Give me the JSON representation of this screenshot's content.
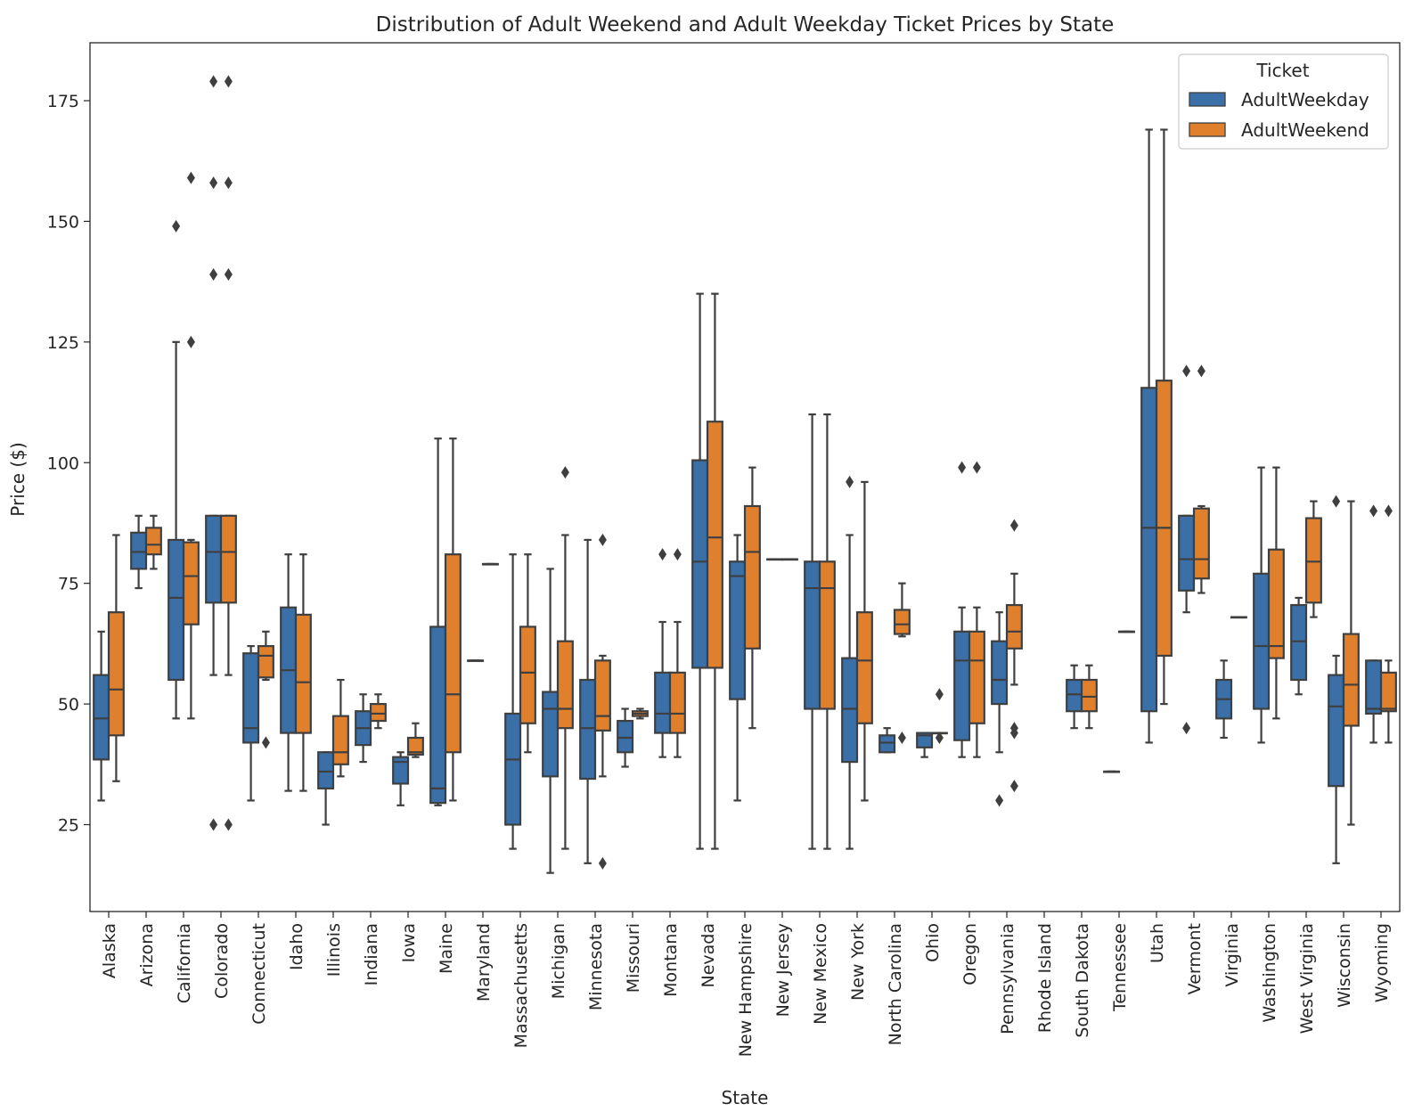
{
  "chart_data": {
    "type": "box",
    "title": "Distribution of Adult Weekend and Adult Weekday Ticket Prices by State",
    "xlabel": "State",
    "ylabel": "Price ($)",
    "ylim": [
      7,
      187
    ],
    "yticks": [
      25,
      50,
      75,
      100,
      125,
      150,
      175
    ],
    "legend": {
      "title": "Ticket",
      "position": "top-right"
    },
    "series": [
      {
        "name": "AdultWeekday",
        "color": "#3a6fa8"
      },
      {
        "name": "AdultWeekend",
        "color": "#e07f2c"
      }
    ],
    "categories": [
      {
        "state": "Alaska",
        "weekday": {
          "whislo": 30,
          "q1": 38.5,
          "med": 47,
          "q3": 56,
          "whishi": 65,
          "fliers": []
        },
        "weekend": {
          "whislo": 34,
          "q1": 43.5,
          "med": 53,
          "q3": 69,
          "whishi": 85,
          "fliers": []
        }
      },
      {
        "state": "Arizona",
        "weekday": {
          "whislo": 74,
          "q1": 78,
          "med": 81.5,
          "q3": 85.5,
          "whishi": 89,
          "fliers": []
        },
        "weekend": {
          "whislo": 78,
          "q1": 81,
          "med": 83,
          "q3": 86.5,
          "whishi": 89,
          "fliers": []
        }
      },
      {
        "state": "California",
        "weekday": {
          "whislo": 47,
          "q1": 55,
          "med": 72,
          "q3": 84,
          "whishi": 125,
          "fliers": [
            149
          ]
        },
        "weekend": {
          "whislo": 47,
          "q1": 66.5,
          "med": 76.5,
          "q3": 83.5,
          "whishi": 84,
          "fliers": [
            125,
            159
          ]
        }
      },
      {
        "state": "Colorado",
        "weekday": {
          "whislo": 56,
          "q1": 71,
          "med": 81.5,
          "q3": 89,
          "whishi": 89,
          "fliers": [
            25,
            139,
            158,
            179
          ]
        },
        "weekend": {
          "whislo": 56,
          "q1": 71,
          "med": 81.5,
          "q3": 89,
          "whishi": 89,
          "fliers": [
            25,
            139,
            158,
            179
          ]
        }
      },
      {
        "state": "Connecticut",
        "weekday": {
          "whislo": 30,
          "q1": 42,
          "med": 45,
          "q3": 60.5,
          "whishi": 62,
          "fliers": []
        },
        "weekend": {
          "whislo": 55,
          "q1": 55.5,
          "med": 60,
          "q3": 62,
          "whishi": 65,
          "fliers": [
            42
          ]
        }
      },
      {
        "state": "Idaho",
        "weekday": {
          "whislo": 32,
          "q1": 44,
          "med": 57,
          "q3": 70,
          "whishi": 81,
          "fliers": []
        },
        "weekend": {
          "whislo": 32,
          "q1": 44,
          "med": 54.5,
          "q3": 68.5,
          "whishi": 81,
          "fliers": []
        }
      },
      {
        "state": "Illinois",
        "weekday": {
          "whislo": 25,
          "q1": 32.5,
          "med": 36,
          "q3": 40,
          "whishi": 40,
          "fliers": []
        },
        "weekend": {
          "whislo": 35,
          "q1": 37.5,
          "med": 40,
          "q3": 47.5,
          "whishi": 55,
          "fliers": []
        }
      },
      {
        "state": "Indiana",
        "weekday": {
          "whislo": 38,
          "q1": 41.5,
          "med": 45,
          "q3": 48.5,
          "whishi": 52,
          "fliers": []
        },
        "weekend": {
          "whislo": 45,
          "q1": 46.5,
          "med": 48,
          "q3": 50,
          "whishi": 52,
          "fliers": []
        }
      },
      {
        "state": "Iowa",
        "weekday": {
          "whislo": 29,
          "q1": 33.5,
          "med": 38,
          "q3": 39,
          "whishi": 40,
          "fliers": []
        },
        "weekend": {
          "whislo": 39,
          "q1": 39.5,
          "med": 40,
          "q3": 43,
          "whishi": 46,
          "fliers": []
        }
      },
      {
        "state": "Maine",
        "weekday": {
          "whislo": 29,
          "q1": 29.5,
          "med": 32.5,
          "q3": 66,
          "whishi": 105,
          "fliers": []
        },
        "weekend": {
          "whislo": 30,
          "q1": 40,
          "med": 52,
          "q3": 81,
          "whishi": 105,
          "fliers": []
        }
      },
      {
        "state": "Maryland",
        "weekday": {
          "whislo": 59,
          "q1": 59,
          "med": 59,
          "q3": 59,
          "whishi": 59,
          "fliers": []
        },
        "weekend": {
          "whislo": 79,
          "q1": 79,
          "med": 79,
          "q3": 79,
          "whishi": 79,
          "fliers": []
        }
      },
      {
        "state": "Massachusetts",
        "weekday": {
          "whislo": 20,
          "q1": 25,
          "med": 38.5,
          "q3": 48,
          "whishi": 81,
          "fliers": []
        },
        "weekend": {
          "whislo": 40,
          "q1": 46,
          "med": 56.5,
          "q3": 66,
          "whishi": 81,
          "fliers": []
        }
      },
      {
        "state": "Michigan",
        "weekday": {
          "whislo": 15,
          "q1": 35,
          "med": 49,
          "q3": 52.5,
          "whishi": 78,
          "fliers": []
        },
        "weekend": {
          "whislo": 20,
          "q1": 45,
          "med": 49,
          "q3": 63,
          "whishi": 85,
          "fliers": [
            98
          ]
        }
      },
      {
        "state": "Minnesota",
        "weekday": {
          "whislo": 17,
          "q1": 34.5,
          "med": 45,
          "q3": 55,
          "whishi": 84,
          "fliers": []
        },
        "weekend": {
          "whislo": 35,
          "q1": 44.5,
          "med": 47.5,
          "q3": 59,
          "whishi": 60,
          "fliers": [
            17,
            84
          ]
        }
      },
      {
        "state": "Missouri",
        "weekday": {
          "whislo": 37,
          "q1": 40,
          "med": 43,
          "q3": 46.5,
          "whishi": 49,
          "fliers": []
        },
        "weekend": {
          "whislo": 47,
          "q1": 47.5,
          "med": 48,
          "q3": 48.5,
          "whishi": 49,
          "fliers": []
        }
      },
      {
        "state": "Montana",
        "weekday": {
          "whislo": 39,
          "q1": 44,
          "med": 48,
          "q3": 56.5,
          "whishi": 67,
          "fliers": [
            81
          ]
        },
        "weekend": {
          "whislo": 39,
          "q1": 44,
          "med": 48,
          "q3": 56.5,
          "whishi": 67,
          "fliers": [
            81
          ]
        }
      },
      {
        "state": "Nevada",
        "weekday": {
          "whislo": 20,
          "q1": 57.5,
          "med": 79.5,
          "q3": 100.5,
          "whishi": 135,
          "fliers": []
        },
        "weekend": {
          "whislo": 20,
          "q1": 57.5,
          "med": 84.5,
          "q3": 108.5,
          "whishi": 135,
          "fliers": []
        }
      },
      {
        "state": "New Hampshire",
        "weekday": {
          "whislo": 30,
          "q1": 51,
          "med": 76.5,
          "q3": 79.5,
          "whishi": 85,
          "fliers": []
        },
        "weekend": {
          "whislo": 45,
          "q1": 61.5,
          "med": 81.5,
          "q3": 91,
          "whishi": 99,
          "fliers": []
        }
      },
      {
        "state": "New Jersey",
        "weekday": {
          "whislo": 80,
          "q1": 80,
          "med": 80,
          "q3": 80,
          "whishi": 80,
          "fliers": []
        },
        "weekend": {
          "whislo": 80,
          "q1": 80,
          "med": 80,
          "q3": 80,
          "whishi": 80,
          "fliers": []
        }
      },
      {
        "state": "New Mexico",
        "weekday": {
          "whislo": 20,
          "q1": 49,
          "med": 74,
          "q3": 79.5,
          "whishi": 110,
          "fliers": []
        },
        "weekend": {
          "whislo": 20,
          "q1": 49,
          "med": 74,
          "q3": 79.5,
          "whishi": 110,
          "fliers": []
        }
      },
      {
        "state": "New York",
        "weekday": {
          "whislo": 20,
          "q1": 38,
          "med": 49,
          "q3": 59.5,
          "whishi": 85,
          "fliers": [
            96
          ]
        },
        "weekend": {
          "whislo": 30,
          "q1": 46,
          "med": 59,
          "q3": 69,
          "whishi": 96,
          "fliers": []
        }
      },
      {
        "state": "North Carolina",
        "weekday": {
          "whislo": 40,
          "q1": 40,
          "med": 42,
          "q3": 43.5,
          "whishi": 45,
          "fliers": []
        },
        "weekend": {
          "whislo": 64,
          "q1": 64.5,
          "med": 66.5,
          "q3": 69.5,
          "whishi": 75,
          "fliers": [
            43
          ]
        }
      },
      {
        "state": "Ohio",
        "weekday": {
          "whislo": 39,
          "q1": 41,
          "med": 43.5,
          "q3": 44,
          "whishi": 44,
          "fliers": []
        },
        "weekend": {
          "whislo": 44,
          "q1": 44,
          "med": 44,
          "q3": 44,
          "whishi": 44,
          "fliers": [
            43,
            52
          ]
        }
      },
      {
        "state": "Oregon",
        "weekday": {
          "whislo": 39,
          "q1": 42.5,
          "med": 59,
          "q3": 65,
          "whishi": 70,
          "fliers": [
            99
          ]
        },
        "weekend": {
          "whislo": 39,
          "q1": 46,
          "med": 59,
          "q3": 65,
          "whishi": 70,
          "fliers": [
            99
          ]
        }
      },
      {
        "state": "Pennsylvania",
        "weekday": {
          "whislo": 40,
          "q1": 50,
          "med": 55,
          "q3": 63,
          "whishi": 69,
          "fliers": [
            30
          ]
        },
        "weekend": {
          "whislo": 54,
          "q1": 61.5,
          "med": 65,
          "q3": 70.5,
          "whishi": 77,
          "fliers": [
            33,
            44,
            45,
            87
          ]
        }
      },
      {
        "state": "Rhode Island",
        "weekday": null,
        "weekend": null
      },
      {
        "state": "South Dakota",
        "weekday": {
          "whislo": 45,
          "q1": 48.5,
          "med": 52,
          "q3": 55,
          "whishi": 58,
          "fliers": []
        },
        "weekend": {
          "whislo": 45,
          "q1": 48.5,
          "med": 51.5,
          "q3": 55,
          "whishi": 58,
          "fliers": []
        }
      },
      {
        "state": "Tennessee",
        "weekday": {
          "whislo": 36,
          "q1": 36,
          "med": 36,
          "q3": 36,
          "whishi": 36,
          "fliers": []
        },
        "weekend": {
          "whislo": 65,
          "q1": 65,
          "med": 65,
          "q3": 65,
          "whishi": 65,
          "fliers": []
        }
      },
      {
        "state": "Utah",
        "weekday": {
          "whislo": 42,
          "q1": 48.5,
          "med": 86.5,
          "q3": 115.5,
          "whishi": 169,
          "fliers": []
        },
        "weekend": {
          "whislo": 50,
          "q1": 60,
          "med": 86.5,
          "q3": 117,
          "whishi": 169,
          "fliers": []
        }
      },
      {
        "state": "Vermont",
        "weekday": {
          "whislo": 69,
          "q1": 73.5,
          "med": 80,
          "q3": 89,
          "whishi": 89,
          "fliers": [
            45,
            119
          ]
        },
        "weekend": {
          "whislo": 73,
          "q1": 76,
          "med": 80,
          "q3": 90.5,
          "whishi": 91,
          "fliers": [
            119
          ]
        }
      },
      {
        "state": "Virginia",
        "weekday": {
          "whislo": 43,
          "q1": 47,
          "med": 51,
          "q3": 55,
          "whishi": 59,
          "fliers": []
        },
        "weekend": {
          "whislo": 68,
          "q1": 68,
          "med": 68,
          "q3": 68,
          "whishi": 68,
          "fliers": []
        }
      },
      {
        "state": "Washington",
        "weekday": {
          "whislo": 42,
          "q1": 49,
          "med": 62,
          "q3": 77,
          "whishi": 99,
          "fliers": []
        },
        "weekend": {
          "whislo": 47,
          "q1": 59.5,
          "med": 62,
          "q3": 82,
          "whishi": 99,
          "fliers": []
        }
      },
      {
        "state": "West Virginia",
        "weekday": {
          "whislo": 52,
          "q1": 55,
          "med": 63,
          "q3": 70.5,
          "whishi": 72,
          "fliers": []
        },
        "weekend": {
          "whislo": 68,
          "q1": 71,
          "med": 79.5,
          "q3": 88.5,
          "whishi": 92,
          "fliers": []
        }
      },
      {
        "state": "Wisconsin",
        "weekday": {
          "whislo": 17,
          "q1": 33,
          "med": 49.5,
          "q3": 56,
          "whishi": 60,
          "fliers": [
            92
          ]
        },
        "weekend": {
          "whislo": 25,
          "q1": 45.5,
          "med": 54,
          "q3": 64.5,
          "whishi": 92,
          "fliers": []
        }
      },
      {
        "state": "Wyoming",
        "weekday": {
          "whislo": 42,
          "q1": 48,
          "med": 49,
          "q3": 59,
          "whishi": 59,
          "fliers": [
            90
          ]
        },
        "weekend": {
          "whislo": 42,
          "q1": 48.5,
          "med": 49,
          "q3": 56.5,
          "whishi": 59,
          "fliers": [
            90
          ]
        }
      }
    ]
  }
}
